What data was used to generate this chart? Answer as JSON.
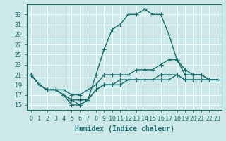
{
  "xlabel": "Humidex (Indice chaleur)",
  "background_color": "#cce8e8",
  "line_color": "#1a6b6b",
  "grid_color": "#ffffff",
  "x_values": [
    0,
    1,
    2,
    3,
    4,
    5,
    6,
    7,
    8,
    9,
    10,
    11,
    12,
    13,
    14,
    15,
    16,
    17,
    18,
    19,
    20,
    21,
    22,
    23
  ],
  "series": {
    "max": [
      21,
      19,
      18,
      18,
      17,
      15,
      15,
      16,
      21,
      26,
      30,
      31,
      33,
      33,
      34,
      33,
      33,
      29,
      24,
      21,
      21,
      21,
      20,
      20
    ],
    "upper": [
      21,
      19,
      18,
      18,
      18,
      17,
      17,
      18,
      19,
      21,
      21,
      21,
      21,
      22,
      22,
      22,
      23,
      24,
      24,
      22,
      21,
      21,
      20,
      20
    ],
    "lower": [
      21,
      19,
      18,
      18,
      17,
      16,
      16,
      16,
      18,
      19,
      19,
      20,
      20,
      20,
      20,
      20,
      21,
      21,
      21,
      20,
      20,
      20,
      20,
      20
    ],
    "min": [
      21,
      19,
      18,
      18,
      17,
      16,
      15,
      16,
      18,
      19,
      19,
      19,
      20,
      20,
      20,
      20,
      20,
      20,
      21,
      20,
      20,
      20,
      20,
      20
    ]
  },
  "ylim": [
    14,
    35
  ],
  "yticks": [
    15,
    17,
    19,
    21,
    23,
    25,
    27,
    29,
    31,
    33
  ],
  "xlim": [
    -0.5,
    23.5
  ],
  "xticks": [
    0,
    1,
    2,
    3,
    4,
    5,
    6,
    7,
    8,
    9,
    10,
    11,
    12,
    13,
    14,
    15,
    16,
    17,
    18,
    19,
    20,
    21,
    22,
    23
  ],
  "tick_fontsize": 6,
  "xlabel_fontsize": 7,
  "marker": "+",
  "markersize": 4,
  "linewidth": 1.0
}
